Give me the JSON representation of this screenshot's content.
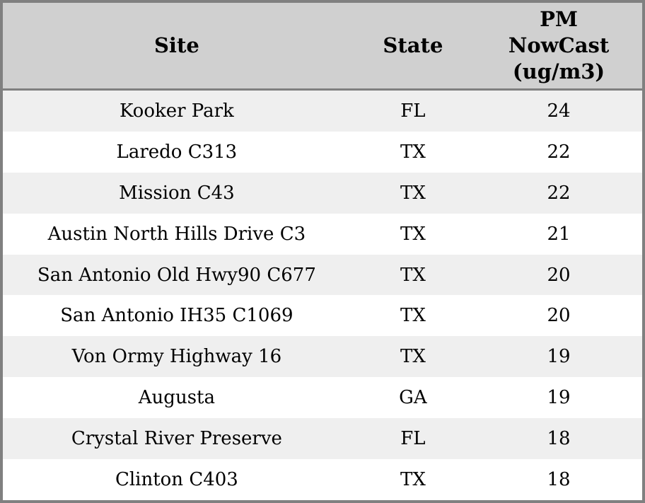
{
  "chart_data": {
    "type": "table",
    "title": "",
    "columns": [
      "Site",
      "State",
      "PM NowCast (ug/m3)"
    ],
    "rows": [
      [
        "Kooker Park",
        "FL",
        24
      ],
      [
        "Laredo C313",
        "TX",
        22
      ],
      [
        "Mission C43",
        "TX",
        22
      ],
      [
        "Austin North Hills Drive C3",
        "TX",
        21
      ],
      [
        "San Antonio Old Hwy90 C677",
        "TX",
        20
      ],
      [
        "San Antonio IH35 C1069",
        "TX",
        20
      ],
      [
        "Von Ormy Highway 16",
        "TX",
        19
      ],
      [
        "Augusta",
        "GA",
        19
      ],
      [
        "Crystal River Preserve",
        "FL",
        18
      ],
      [
        "Clinton C403",
        "TX",
        18
      ]
    ],
    "layout": {
      "grid": "none",
      "row_striping": true,
      "header_lines_pm_column": 3
    }
  },
  "table": {
    "header": {
      "site": "Site",
      "state": "State",
      "pm_display": "PM\nNowCast\n(ug/m3)"
    }
  },
  "colors": {
    "border": "#808080",
    "header_bg": "#d0d0d0",
    "row_odd_bg": "#efefef",
    "row_even_bg": "#ffffff",
    "text": "#000000"
  }
}
